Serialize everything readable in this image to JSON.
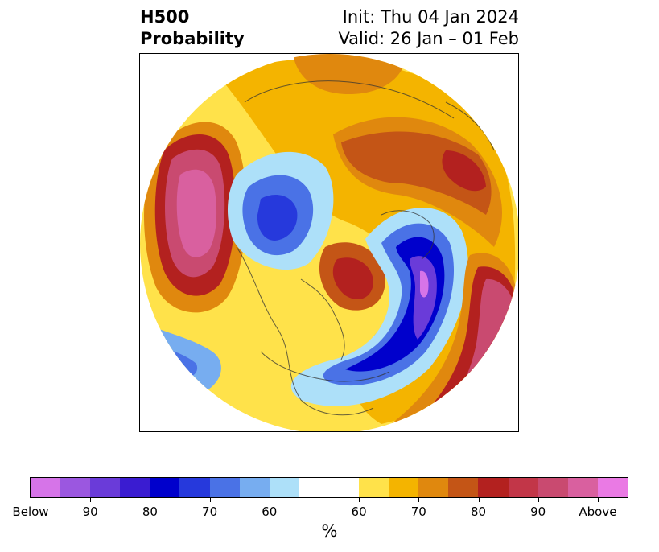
{
  "header": {
    "title_line1": "H500",
    "title_line2": "Probability",
    "init_line": "Init: Thu 04 Jan 2024",
    "valid_line": "Valid: 26 Jan – 01 Feb"
  },
  "colorbar": {
    "colors": [
      "#d674e8",
      "#9b57e0",
      "#6a3bd9",
      "#3a1cd1",
      "#0000cc",
      "#2639dc",
      "#4a72e6",
      "#77adf0",
      "#ade0f9",
      "#ffffff",
      "#ffe24a",
      "#f4b400",
      "#e0880e",
      "#c45516",
      "#b3211f",
      "#c23648",
      "#c94a70",
      "#d9609f",
      "#ea7ae4"
    ],
    "tick_labels": [
      "Below",
      "90",
      "80",
      "70",
      "60",
      "60",
      "70",
      "80",
      "90",
      "Above"
    ],
    "unit_label": "%"
  }
}
